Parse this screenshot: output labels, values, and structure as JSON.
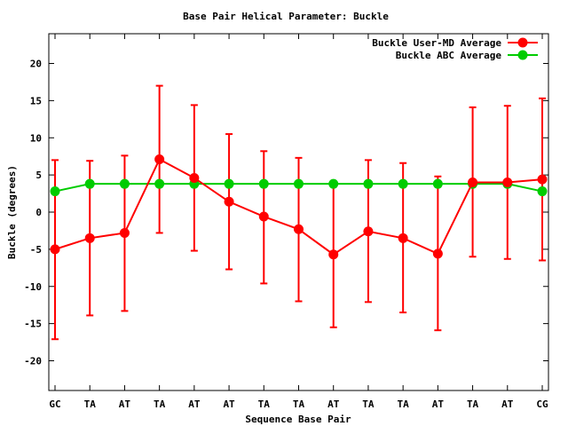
{
  "chart_data": {
    "type": "line",
    "title": "Base Pair Helical Parameter: Buckle",
    "xlabel": "Sequence Base Pair",
    "ylabel": "Buckle (degrees)",
    "categories": [
      "GC",
      "TA",
      "AT",
      "TA",
      "AT",
      "AT",
      "TA",
      "TA",
      "AT",
      "TA",
      "TA",
      "AT",
      "TA",
      "AT",
      "CG"
    ],
    "ylim": [
      -24,
      24
    ],
    "yticks": [
      -20,
      -15,
      -10,
      -5,
      0,
      5,
      10,
      15,
      20
    ],
    "grid": false,
    "legend_position": "top-right",
    "series": [
      {
        "name": "Buckle User-MD Average",
        "color": "#ff0000",
        "values": [
          -5.0,
          -3.5,
          -2.8,
          7.1,
          4.6,
          1.4,
          -0.6,
          -2.3,
          -5.7,
          -2.6,
          -3.5,
          -5.6,
          4.0,
          4.0,
          4.4
        ],
        "err_low": [
          -17.1,
          -13.9,
          -13.3,
          -2.8,
          -5.2,
          -7.7,
          -9.6,
          -12.0,
          -15.5,
          -12.1,
          -13.5,
          -15.9,
          -6.0,
          -6.3,
          -6.5
        ],
        "err_high": [
          7.0,
          6.9,
          7.6,
          17.0,
          14.4,
          10.5,
          8.2,
          7.3,
          3.7,
          7.0,
          6.6,
          4.8,
          14.1,
          14.3,
          15.3
        ]
      },
      {
        "name": "Buckle ABC Average",
        "color": "#00cc00",
        "values": [
          2.8,
          3.8,
          3.8,
          3.8,
          3.8,
          3.8,
          3.8,
          3.8,
          3.8,
          3.8,
          3.8,
          3.8,
          3.8,
          3.8,
          2.8
        ]
      }
    ]
  }
}
